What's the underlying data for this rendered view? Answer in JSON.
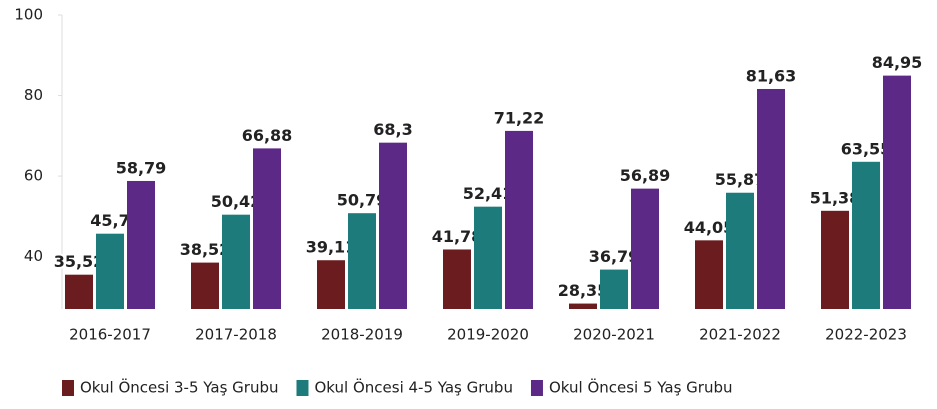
{
  "chart_data": {
    "type": "bar",
    "categories": [
      "2016-2017",
      "2017-2018",
      "2018-2019",
      "2019-2020",
      "2020-2021",
      "2021-2022",
      "2022-2023"
    ],
    "series": [
      {
        "name": "Okul Öncesi 3-5 Yaş Grubu",
        "color": "#6b1c1e",
        "values": [
          35.52,
          38.52,
          39.11,
          41.78,
          28.35,
          44.05,
          51.38
        ],
        "value_labels": [
          "35,52",
          "38,52",
          "39,11",
          "41,78",
          "28,35",
          "44,05",
          "51,38"
        ]
      },
      {
        "name": "Okul Öncesi 4-5 Yaş Grubu",
        "color": "#1e7b7b",
        "values": [
          45.7,
          50.42,
          50.79,
          52.41,
          36.79,
          55.87,
          63.55
        ],
        "value_labels": [
          "45,7",
          "50,42",
          "50,79",
          "52,41",
          "36,79",
          "55,87",
          "63,55"
        ]
      },
      {
        "name": "Okul Öncesi 5 Yaş Grubu",
        "color": "#5c2a86",
        "values": [
          58.79,
          66.88,
          68.3,
          71.22,
          56.89,
          81.63,
          84.95
        ],
        "value_labels": [
          "58,79",
          "66,88",
          "68,3",
          "71,22",
          "56,89",
          "81,63",
          "84,95"
        ]
      }
    ],
    "ylim": [
      27,
      100
    ],
    "yticks": [
      40,
      60,
      80,
      100
    ],
    "legend": "bottom"
  }
}
